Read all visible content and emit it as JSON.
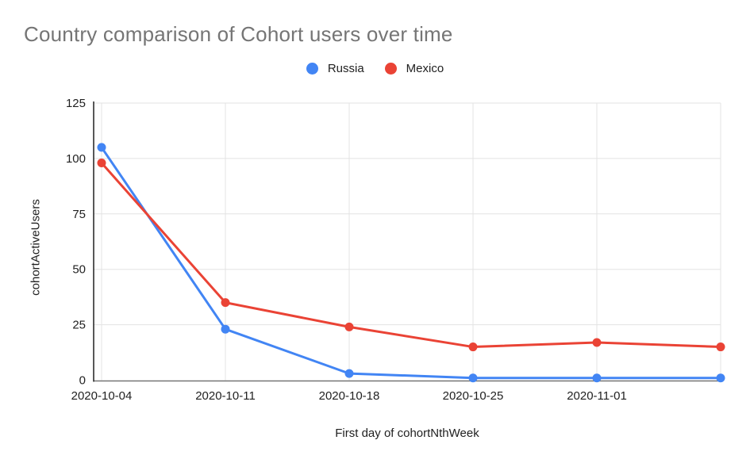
{
  "chart": {
    "title": "Country comparison of Cohort users over time",
    "x_axis_title": "First day of cohortNthWeek",
    "y_axis_title": "cohortActiveUsers",
    "colors": {
      "russia_blue": "#4285F4",
      "mexico_red": "#EA4335",
      "title_gray": "#757575",
      "tick_text": "#212121",
      "gridline": "#e3e3e3",
      "y_axis_line": "#212121",
      "x_axis_line": "#757575"
    }
  },
  "chart_data": {
    "type": "line",
    "title": "Country comparison of Cohort users over time",
    "xlabel": "First day of cohortNthWeek",
    "ylabel": "cohortActiveUsers",
    "categories": [
      "2020-10-04",
      "2020-10-11",
      "2020-10-18",
      "2020-10-25",
      "2020-11-01",
      ""
    ],
    "series": [
      {
        "name": "Russia",
        "color": "#4285F4",
        "values": [
          105,
          23,
          3,
          1,
          1,
          1
        ]
      },
      {
        "name": "Mexico",
        "color": "#EA4335",
        "values": [
          98,
          35,
          24,
          15,
          17,
          15
        ]
      }
    ],
    "ylim": [
      0,
      125
    ],
    "yticks": [
      0,
      25,
      50,
      75,
      100,
      125
    ],
    "grid": true,
    "legend_position": "top",
    "marker": "circle"
  }
}
